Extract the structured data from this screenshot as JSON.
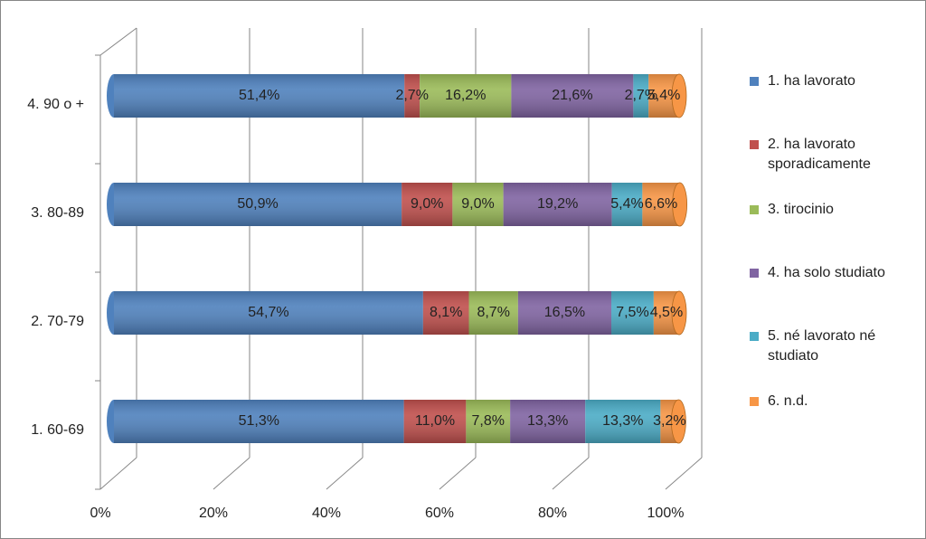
{
  "chart_data": {
    "type": "bar",
    "orientation": "horizontal",
    "stacked": true,
    "categories": [
      "1. 60-69",
      "2. 70-79",
      "3. 80-89",
      "4. 90 o +"
    ],
    "series": [
      {
        "name": "1. ha lavorato",
        "color": "#4f81bd",
        "values": [
          51.3,
          54.7,
          50.9,
          51.4
        ],
        "value_labels": [
          "51,3%",
          "54,7%",
          "50,9%",
          "51,4%"
        ]
      },
      {
        "name": "2. ha lavorato sporadicamente",
        "color": "#c0504d",
        "values": [
          11.0,
          8.1,
          9.0,
          2.7
        ],
        "value_labels": [
          "11,0%",
          "8,1%",
          "9,0%",
          "2,7%"
        ]
      },
      {
        "name": "3. tirocinio",
        "color": "#9bbb59",
        "values": [
          7.8,
          8.7,
          9.0,
          16.2
        ],
        "value_labels": [
          "7,8%",
          "8,7%",
          "9,0%",
          "16,2%"
        ]
      },
      {
        "name": "4. ha solo studiato",
        "color": "#8064a2",
        "values": [
          13.3,
          16.5,
          19.2,
          21.6
        ],
        "value_labels": [
          "13,3%",
          "16,5%",
          "19,2%",
          "21,6%"
        ]
      },
      {
        "name": "5. né lavorato né studiato",
        "color": "#4bacc6",
        "values": [
          13.3,
          7.5,
          5.4,
          2.7
        ],
        "value_labels": [
          "13,3%",
          "7,5%",
          "5,4%",
          "2,7%"
        ]
      },
      {
        "name": "6. n.d.",
        "color": "#f79646",
        "values": [
          3.2,
          4.5,
          6.6,
          5.4
        ],
        "value_labels": [
          "3,2%",
          "4,5%",
          "6,6%",
          "5,4%"
        ]
      }
    ],
    "xlim": [
      0,
      100
    ],
    "xticks": [
      {
        "value": 0,
        "label": "0%"
      },
      {
        "value": 20,
        "label": "20%"
      },
      {
        "value": 40,
        "label": "40%"
      },
      {
        "value": 60,
        "label": "60%"
      },
      {
        "value": 80,
        "label": "80%"
      },
      {
        "value": 100,
        "label": "100%"
      }
    ],
    "grid": true,
    "legend": "right"
  }
}
